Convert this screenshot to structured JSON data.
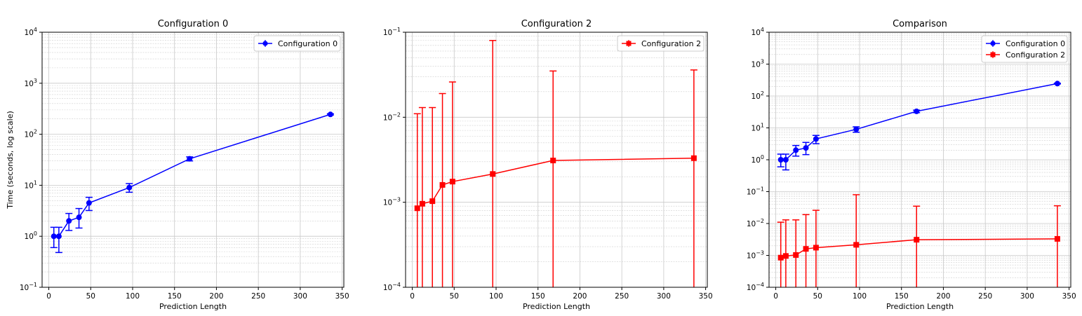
{
  "chart_data": [
    {
      "type": "line",
      "title": "Configuration 0",
      "xlabel": "Prediction Length",
      "ylabel": "Time (seconds, log scale)",
      "xlim": [
        -8,
        352
      ],
      "ylim": [
        0.1,
        10000
      ],
      "yscale": "log",
      "xticks": [
        0,
        50,
        100,
        150,
        200,
        250,
        300,
        350
      ],
      "yticks": [
        {
          "value": 0.1,
          "base": "10",
          "exp": "−1"
        },
        {
          "value": 1,
          "base": "10",
          "exp": "0"
        },
        {
          "value": 10,
          "base": "10",
          "exp": "1"
        },
        {
          "value": 100,
          "base": "10",
          "exp": "2"
        },
        {
          "value": 1000,
          "base": "10",
          "exp": "3"
        },
        {
          "value": 10000,
          "base": "10",
          "exp": "4"
        }
      ],
      "grid": true,
      "legend_position": "top-right",
      "series": [
        {
          "name": "Configuration 0",
          "color": "#0000ff",
          "marker": "circle",
          "x": [
            6,
            12,
            24,
            36,
            48,
            96,
            168,
            336
          ],
          "y": [
            1.0,
            1.0,
            2.0,
            2.35,
            4.5,
            9.0,
            33.0,
            245.0
          ],
          "err_low": [
            0.6,
            0.48,
            1.3,
            1.45,
            3.2,
            7.3,
            30.0,
            238.0
          ],
          "err_high": [
            1.5,
            1.5,
            2.8,
            3.5,
            5.8,
            10.8,
            36.0,
            252.0
          ]
        }
      ]
    },
    {
      "type": "line",
      "title": "Configuration 2",
      "xlabel": "Prediction Length",
      "ylabel": "",
      "xlim": [
        -8,
        352
      ],
      "ylim": [
        0.0001,
        0.1
      ],
      "yscale": "log",
      "xticks": [
        0,
        50,
        100,
        150,
        200,
        250,
        300,
        350
      ],
      "yticks": [
        {
          "value": 0.0001,
          "base": "10",
          "exp": "−4"
        },
        {
          "value": 0.001,
          "base": "10",
          "exp": "−3"
        },
        {
          "value": 0.01,
          "base": "10",
          "exp": "−2"
        },
        {
          "value": 0.1,
          "base": "10",
          "exp": "−1"
        }
      ],
      "grid": true,
      "legend_position": "top-right",
      "series": [
        {
          "name": "Configuration 2",
          "color": "#ff0000",
          "marker": "square",
          "x": [
            6,
            12,
            24,
            36,
            48,
            96,
            168,
            336
          ],
          "y": [
            0.00085,
            0.00096,
            0.00103,
            0.0016,
            0.00175,
            0.00215,
            0.0031,
            0.0033
          ],
          "err_low": [
            1e-05,
            1e-05,
            1e-05,
            1e-05,
            1e-05,
            1e-05,
            1e-05,
            1e-05
          ],
          "err_high": [
            0.011,
            0.013,
            0.013,
            0.019,
            0.026,
            0.08,
            0.035,
            0.036
          ]
        }
      ]
    },
    {
      "type": "line",
      "title": "Comparison",
      "xlabel": "Prediction Length",
      "ylabel": "",
      "xlim": [
        -8,
        352
      ],
      "ylim": [
        0.0001,
        10000
      ],
      "yscale": "log",
      "xticks": [
        0,
        50,
        100,
        150,
        200,
        250,
        300,
        350
      ],
      "yticks": [
        {
          "value": 0.0001,
          "base": "10",
          "exp": "−4"
        },
        {
          "value": 0.001,
          "base": "10",
          "exp": "−3"
        },
        {
          "value": 0.01,
          "base": "10",
          "exp": "−2"
        },
        {
          "value": 0.1,
          "base": "10",
          "exp": "−1"
        },
        {
          "value": 1,
          "base": "10",
          "exp": "0"
        },
        {
          "value": 10,
          "base": "10",
          "exp": "1"
        },
        {
          "value": 100,
          "base": "10",
          "exp": "2"
        },
        {
          "value": 1000,
          "base": "10",
          "exp": "3"
        },
        {
          "value": 10000,
          "base": "10",
          "exp": "4"
        }
      ],
      "grid": true,
      "legend_position": "top-right",
      "series": [
        {
          "name": "Configuration 0",
          "color": "#0000ff",
          "marker": "circle",
          "x": [
            6,
            12,
            24,
            36,
            48,
            96,
            168,
            336
          ],
          "y": [
            1.0,
            1.0,
            2.0,
            2.35,
            4.5,
            9.0,
            33.0,
            245.0
          ],
          "err_low": [
            0.6,
            0.48,
            1.3,
            1.45,
            3.2,
            7.3,
            30.0,
            238.0
          ],
          "err_high": [
            1.5,
            1.5,
            2.8,
            3.5,
            5.8,
            10.8,
            36.0,
            252.0
          ]
        },
        {
          "name": "Configuration 2",
          "color": "#ff0000",
          "marker": "square",
          "x": [
            6,
            12,
            24,
            36,
            48,
            96,
            168,
            336
          ],
          "y": [
            0.00085,
            0.00096,
            0.00103,
            0.0016,
            0.00175,
            0.00215,
            0.0031,
            0.0033
          ],
          "err_low": [
            1e-05,
            1e-05,
            1e-05,
            1e-05,
            1e-05,
            1e-05,
            1e-05,
            1e-05
          ],
          "err_high": [
            0.011,
            0.013,
            0.013,
            0.019,
            0.026,
            0.08,
            0.035,
            0.036
          ]
        }
      ]
    }
  ]
}
